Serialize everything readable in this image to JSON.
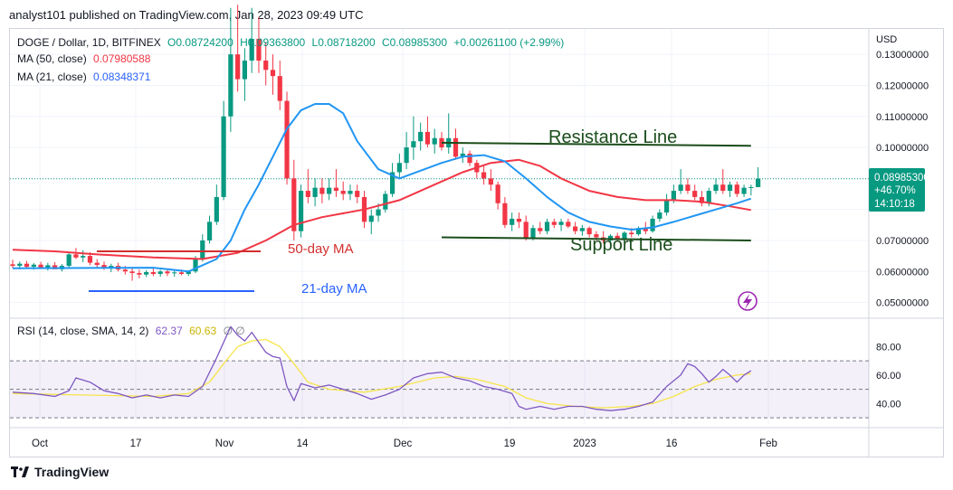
{
  "header": {
    "published": "analyst101 published on TradingView.com, Jan 28, 2023 09:49 UTC"
  },
  "legend": {
    "symbol": "DOGE / Dollar, 1D, BITFINEX",
    "open": "O0.08724200",
    "high": "H0.09363800",
    "low": "L0.08718200",
    "close": "C0.08985300",
    "change": "+0.00261100 (+2.99%)",
    "ma50_label": "MA (50, close)",
    "ma50_value": "0.07980588",
    "ma21_label": "MA (21, close)",
    "ma21_value": "0.08348371",
    "rsi_label": "RSI (14, close, SMA, 14, 2)",
    "rsi_value": "62.37",
    "rsi_sma_value": "60.63",
    "rsi_extra": "∅  ∅"
  },
  "price_axis": {
    "currency": "USD",
    "ticks": [
      "0.13000000",
      "0.12000000",
      "0.11000000",
      "0.10000000",
      "0.07000000",
      "0.06000000",
      "0.05000000"
    ]
  },
  "price_tag": {
    "price": "0.08985300",
    "change": "+46.70%",
    "countdown": "14:10:18"
  },
  "rsi_axis": {
    "ticks": [
      "80.00",
      "60.00",
      "40.00"
    ]
  },
  "time_axis": {
    "labels": [
      "Oct",
      "17",
      "Nov",
      "14",
      "Dec",
      "19",
      "2023",
      "16",
      "Feb"
    ]
  },
  "annotations": {
    "resistance": "Resistance Line",
    "support": "Support Line",
    "ma50": "50-day MA",
    "ma21": "21-day MA"
  },
  "brand": "TradingView",
  "colors": {
    "up": "#089981",
    "down": "#f23645",
    "ma50": "#f23645",
    "ma21": "#2196f3",
    "rsi": "#7e57c2",
    "rsi_sma": "#f7e44a",
    "trendline": "#1b4d1b"
  },
  "chart_data": {
    "type": "candlestick",
    "ylim": [
      0.0455,
      0.1385
    ],
    "x_dates": [
      "2022-09-27",
      "2023-02-08"
    ],
    "ohlc": [
      [
        0.0623,
        0.0638,
        0.0611,
        0.0618
      ],
      [
        0.0618,
        0.0632,
        0.0607,
        0.0625
      ],
      [
        0.0625,
        0.0634,
        0.0612,
        0.0615
      ],
      [
        0.0615,
        0.0627,
        0.0606,
        0.0622
      ],
      [
        0.0622,
        0.0631,
        0.0612,
        0.061
      ],
      [
        0.061,
        0.0628,
        0.0603,
        0.062
      ],
      [
        0.062,
        0.063,
        0.061,
        0.0607
      ],
      [
        0.0607,
        0.0624,
        0.06,
        0.0618
      ],
      [
        0.0618,
        0.066,
        0.0612,
        0.0655
      ],
      [
        0.0655,
        0.0676,
        0.064,
        0.0645
      ],
      [
        0.0645,
        0.0668,
        0.063,
        0.065
      ],
      [
        0.065,
        0.0662,
        0.062,
        0.0628
      ],
      [
        0.0628,
        0.064,
        0.061,
        0.0621
      ],
      [
        0.0621,
        0.0632,
        0.0605,
        0.061
      ],
      [
        0.061,
        0.0625,
        0.0598,
        0.0618
      ],
      [
        0.0618,
        0.0628,
        0.06,
        0.0606
      ],
      [
        0.0606,
        0.0618,
        0.059,
        0.06
      ],
      [
        0.06,
        0.0612,
        0.057,
        0.0595
      ],
      [
        0.0595,
        0.0606,
        0.0578,
        0.059
      ],
      [
        0.059,
        0.0604,
        0.0582,
        0.0598
      ],
      [
        0.0598,
        0.061,
        0.0585,
        0.0592
      ],
      [
        0.0592,
        0.0605,
        0.0583,
        0.06
      ],
      [
        0.06,
        0.061,
        0.0585,
        0.0594
      ],
      [
        0.0594,
        0.0604,
        0.0583,
        0.0597
      ],
      [
        0.0597,
        0.0606,
        0.0588,
        0.0592
      ],
      [
        0.0592,
        0.0604,
        0.0586,
        0.06
      ],
      [
        0.06,
        0.065,
        0.0595,
        0.0642
      ],
      [
        0.0642,
        0.072,
        0.0632,
        0.07
      ],
      [
        0.07,
        0.078,
        0.069,
        0.076
      ],
      [
        0.076,
        0.088,
        0.075,
        0.084
      ],
      [
        0.084,
        0.115,
        0.083,
        0.11
      ],
      [
        0.11,
        0.145,
        0.105,
        0.13
      ],
      [
        0.13,
        0.146,
        0.118,
        0.122
      ],
      [
        0.122,
        0.132,
        0.115,
        0.128
      ],
      [
        0.128,
        0.145,
        0.124,
        0.135
      ],
      [
        0.135,
        0.142,
        0.124,
        0.128
      ],
      [
        0.128,
        0.134,
        0.12,
        0.125
      ],
      [
        0.125,
        0.13,
        0.117,
        0.123
      ],
      [
        0.123,
        0.128,
        0.112,
        0.115
      ],
      [
        0.115,
        0.118,
        0.088,
        0.09
      ],
      [
        0.09,
        0.096,
        0.07,
        0.073
      ],
      [
        0.073,
        0.088,
        0.071,
        0.086
      ],
      [
        0.086,
        0.093,
        0.082,
        0.084
      ],
      [
        0.084,
        0.09,
        0.081,
        0.087
      ],
      [
        0.087,
        0.09,
        0.082,
        0.085
      ],
      [
        0.085,
        0.09,
        0.083,
        0.087
      ],
      [
        0.087,
        0.093,
        0.084,
        0.086
      ],
      [
        0.086,
        0.089,
        0.083,
        0.085
      ],
      [
        0.085,
        0.088,
        0.083,
        0.086
      ],
      [
        0.086,
        0.088,
        0.082,
        0.084
      ],
      [
        0.084,
        0.086,
        0.074,
        0.076
      ],
      [
        0.076,
        0.08,
        0.072,
        0.078
      ],
      [
        0.078,
        0.082,
        0.076,
        0.08
      ],
      [
        0.08,
        0.086,
        0.079,
        0.085
      ],
      [
        0.085,
        0.095,
        0.084,
        0.092
      ],
      [
        0.092,
        0.098,
        0.09,
        0.095
      ],
      [
        0.095,
        0.105,
        0.093,
        0.1
      ],
      [
        0.1,
        0.11,
        0.096,
        0.102
      ],
      [
        0.102,
        0.108,
        0.099,
        0.105
      ],
      [
        0.105,
        0.11,
        0.1,
        0.101
      ],
      [
        0.101,
        0.106,
        0.098,
        0.103
      ],
      [
        0.103,
        0.105,
        0.099,
        0.1
      ],
      [
        0.1,
        0.111,
        0.098,
        0.103
      ],
      [
        0.103,
        0.106,
        0.096,
        0.097
      ],
      [
        0.097,
        0.1,
        0.095,
        0.098
      ],
      [
        0.098,
        0.099,
        0.094,
        0.095
      ],
      [
        0.095,
        0.096,
        0.09,
        0.092
      ],
      [
        0.092,
        0.094,
        0.088,
        0.09
      ],
      [
        0.09,
        0.093,
        0.086,
        0.088
      ],
      [
        0.088,
        0.089,
        0.08,
        0.082
      ],
      [
        0.082,
        0.084,
        0.074,
        0.075
      ],
      [
        0.075,
        0.079,
        0.073,
        0.077
      ],
      [
        0.077,
        0.079,
        0.074,
        0.076
      ],
      [
        0.076,
        0.078,
        0.07,
        0.071
      ],
      [
        0.071,
        0.075,
        0.07,
        0.074
      ],
      [
        0.074,
        0.076,
        0.072,
        0.073
      ],
      [
        0.073,
        0.077,
        0.072,
        0.076
      ],
      [
        0.076,
        0.077,
        0.074,
        0.075
      ],
      [
        0.075,
        0.077,
        0.073,
        0.076
      ],
      [
        0.076,
        0.077,
        0.074,
        0.0745
      ],
      [
        0.0745,
        0.076,
        0.072,
        0.073
      ],
      [
        0.073,
        0.075,
        0.0715,
        0.074
      ],
      [
        0.074,
        0.0745,
        0.071,
        0.072
      ],
      [
        0.072,
        0.073,
        0.07,
        0.071
      ],
      [
        0.071,
        0.073,
        0.069,
        0.07
      ],
      [
        0.07,
        0.072,
        0.069,
        0.0715
      ],
      [
        0.0715,
        0.0725,
        0.07,
        0.0705
      ],
      [
        0.0705,
        0.073,
        0.07,
        0.0725
      ],
      [
        0.0725,
        0.074,
        0.071,
        0.072
      ],
      [
        0.072,
        0.0745,
        0.0715,
        0.074
      ],
      [
        0.074,
        0.076,
        0.072,
        0.073
      ],
      [
        0.073,
        0.078,
        0.0725,
        0.077
      ],
      [
        0.077,
        0.08,
        0.076,
        0.079
      ],
      [
        0.079,
        0.085,
        0.078,
        0.083
      ],
      [
        0.083,
        0.088,
        0.082,
        0.086
      ],
      [
        0.086,
        0.093,
        0.085,
        0.088
      ],
      [
        0.088,
        0.09,
        0.085,
        0.086
      ],
      [
        0.086,
        0.088,
        0.083,
        0.084
      ],
      [
        0.084,
        0.086,
        0.081,
        0.082
      ],
      [
        0.082,
        0.087,
        0.081,
        0.086
      ],
      [
        0.086,
        0.09,
        0.085,
        0.088
      ],
      [
        0.088,
        0.093,
        0.085,
        0.086
      ],
      [
        0.086,
        0.089,
        0.084,
        0.088
      ],
      [
        0.088,
        0.089,
        0.084,
        0.085
      ],
      [
        0.085,
        0.088,
        0.084,
        0.087
      ],
      [
        0.087,
        0.088,
        0.0845,
        0.0872
      ],
      [
        0.0872,
        0.0936,
        0.0872,
        0.0899
      ]
    ],
    "ma21": [
      [
        0,
        0.061
      ],
      [
        20,
        0.0612
      ],
      [
        25,
        0.06
      ],
      [
        29,
        0.064
      ],
      [
        31,
        0.07
      ],
      [
        33,
        0.08
      ],
      [
        35,
        0.088
      ],
      [
        37,
        0.097
      ],
      [
        39,
        0.106
      ],
      [
        41,
        0.112
      ],
      [
        43,
        0.114
      ],
      [
        45,
        0.114
      ],
      [
        47,
        0.111
      ],
      [
        49,
        0.102
      ],
      [
        52,
        0.093
      ],
      [
        55,
        0.09
      ],
      [
        58,
        0.0925
      ],
      [
        61,
        0.095
      ],
      [
        64,
        0.097
      ],
      [
        67,
        0.0975
      ],
      [
        70,
        0.0955
      ],
      [
        73,
        0.09
      ],
      [
        76,
        0.084
      ],
      [
        79,
        0.079
      ],
      [
        82,
        0.076
      ],
      [
        85,
        0.0745
      ],
      [
        88,
        0.0735
      ],
      [
        91,
        0.0742
      ],
      [
        94,
        0.076
      ],
      [
        97,
        0.078
      ],
      [
        100,
        0.08
      ],
      [
        103,
        0.082
      ],
      [
        105,
        0.0835
      ]
    ],
    "ma50": [
      [
        0,
        0.067
      ],
      [
        6,
        0.0665
      ],
      [
        12,
        0.0655
      ],
      [
        20,
        0.0645
      ],
      [
        27,
        0.064
      ],
      [
        32,
        0.066
      ],
      [
        36,
        0.07
      ],
      [
        40,
        0.075
      ],
      [
        44,
        0.0775
      ],
      [
        50,
        0.08
      ],
      [
        55,
        0.083
      ],
      [
        60,
        0.088
      ],
      [
        64,
        0.092
      ],
      [
        68,
        0.095
      ],
      [
        72,
        0.096
      ],
      [
        75,
        0.094
      ],
      [
        78,
        0.09
      ],
      [
        82,
        0.086
      ],
      [
        86,
        0.084
      ],
      [
        90,
        0.083
      ],
      [
        94,
        0.083
      ],
      [
        98,
        0.0825
      ],
      [
        102,
        0.081
      ],
      [
        105,
        0.0798
      ]
    ],
    "rsi": [
      [
        0,
        48
      ],
      [
        3,
        47
      ],
      [
        6,
        45
      ],
      [
        8,
        49
      ],
      [
        9,
        58
      ],
      [
        11,
        55
      ],
      [
        13,
        49
      ],
      [
        15,
        47
      ],
      [
        17,
        44
      ],
      [
        19,
        46
      ],
      [
        21,
        44
      ],
      [
        23,
        46
      ],
      [
        25,
        45
      ],
      [
        27,
        52
      ],
      [
        29,
        72
      ],
      [
        31,
        94
      ],
      [
        32,
        88
      ],
      [
        33,
        84
      ],
      [
        34,
        90
      ],
      [
        35,
        83
      ],
      [
        36,
        76
      ],
      [
        37,
        73
      ],
      [
        38,
        72
      ],
      [
        39,
        52
      ],
      [
        40,
        42
      ],
      [
        41,
        54
      ],
      [
        43,
        51
      ],
      [
        45,
        53
      ],
      [
        47,
        50
      ],
      [
        49,
        47
      ],
      [
        51,
        43
      ],
      [
        53,
        46
      ],
      [
        55,
        50
      ],
      [
        57,
        58
      ],
      [
        59,
        61
      ],
      [
        61,
        62
      ],
      [
        63,
        58
      ],
      [
        65,
        56
      ],
      [
        67,
        52
      ],
      [
        69,
        50
      ],
      [
        71,
        47
      ],
      [
        72,
        38
      ],
      [
        73,
        36
      ],
      [
        75,
        38
      ],
      [
        77,
        36
      ],
      [
        79,
        38
      ],
      [
        81,
        38
      ],
      [
        83,
        36
      ],
      [
        85,
        35
      ],
      [
        87,
        36
      ],
      [
        89,
        38
      ],
      [
        91,
        41
      ],
      [
        93,
        52
      ],
      [
        95,
        60
      ],
      [
        96,
        68
      ],
      [
        97,
        66
      ],
      [
        98,
        61
      ],
      [
        99,
        55
      ],
      [
        100,
        59
      ],
      [
        101,
        64
      ],
      [
        102,
        60
      ],
      [
        103,
        55
      ],
      [
        104,
        60
      ],
      [
        105,
        63
      ]
    ],
    "rsi_sma": [
      [
        0,
        47
      ],
      [
        10,
        46
      ],
      [
        20,
        45
      ],
      [
        25,
        47
      ],
      [
        28,
        55
      ],
      [
        30,
        68
      ],
      [
        32,
        80
      ],
      [
        34,
        84
      ],
      [
        36,
        85
      ],
      [
        38,
        80
      ],
      [
        40,
        68
      ],
      [
        42,
        55
      ],
      [
        45,
        50
      ],
      [
        50,
        48
      ],
      [
        55,
        52
      ],
      [
        60,
        58
      ],
      [
        63,
        59
      ],
      [
        66,
        57
      ],
      [
        70,
        52
      ],
      [
        73,
        44
      ],
      [
        76,
        40
      ],
      [
        80,
        38
      ],
      [
        84,
        37
      ],
      [
        88,
        38
      ],
      [
        91,
        40
      ],
      [
        94,
        45
      ],
      [
        97,
        52
      ],
      [
        100,
        57
      ],
      [
        103,
        60
      ],
      [
        105,
        61
      ]
    ],
    "rsi_ylim": [
      25,
      98
    ],
    "rsi_bands": [
      70,
      50,
      30
    ],
    "resistance": [
      [
        61,
        0.1015
      ],
      [
        105,
        0.1005
      ]
    ],
    "support": [
      [
        61,
        0.071
      ],
      [
        105,
        0.07
      ]
    ]
  }
}
